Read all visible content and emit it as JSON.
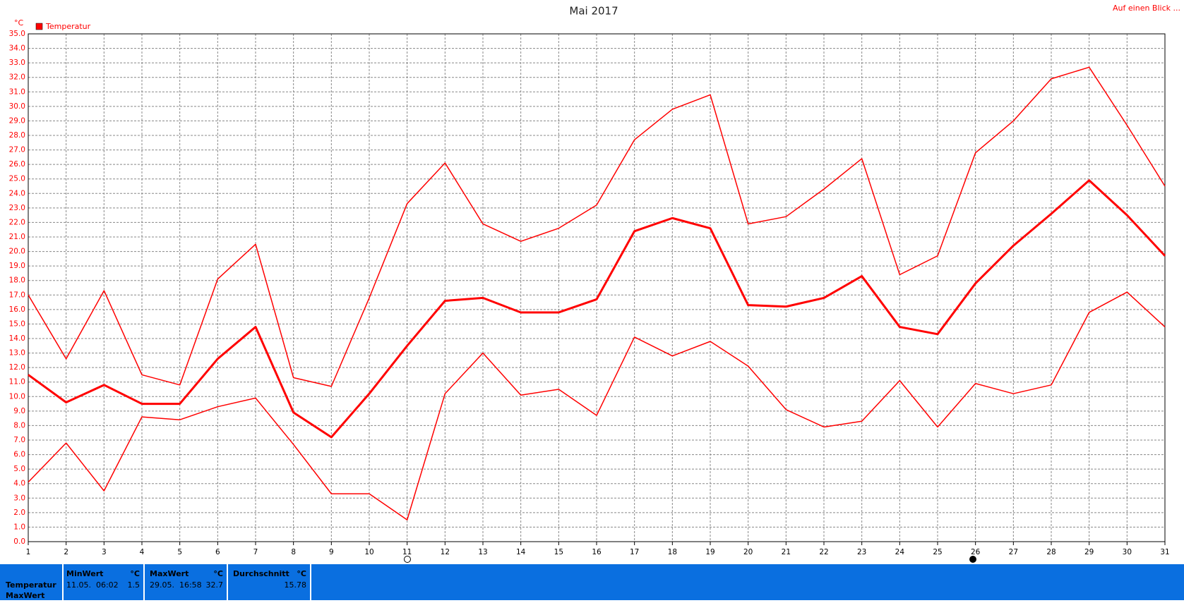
{
  "chart_data": {
    "type": "line",
    "title": "Mai 2017",
    "unit_label": "°C",
    "legend": "Temperatur",
    "legend_color": "#ff0000",
    "link": "Auf einen Blick ...",
    "x": [
      1,
      2,
      3,
      4,
      5,
      6,
      7,
      8,
      9,
      10,
      11,
      12,
      13,
      14,
      15,
      16,
      17,
      18,
      19,
      20,
      21,
      22,
      23,
      24,
      25,
      26,
      27,
      28,
      29,
      30,
      31
    ],
    "xlim": [
      1,
      31
    ],
    "xticks": [
      1,
      2,
      3,
      4,
      5,
      6,
      7,
      8,
      9,
      10,
      11,
      12,
      13,
      14,
      15,
      16,
      17,
      18,
      19,
      20,
      21,
      22,
      23,
      24,
      25,
      26,
      27,
      28,
      29,
      30,
      31
    ],
    "ylim": [
      0,
      35
    ],
    "yticks": [
      {
        "value": 0,
        "label": "0.0"
      },
      {
        "value": 1,
        "label": "1.0"
      },
      {
        "value": 2,
        "label": "2.0"
      },
      {
        "value": 3,
        "label": "3.0"
      },
      {
        "value": 4,
        "label": "4.0"
      },
      {
        "value": 5,
        "label": "5.0"
      },
      {
        "value": 6,
        "label": "6.0"
      },
      {
        "value": 7,
        "label": "7.0"
      },
      {
        "value": 8,
        "label": "8.0"
      },
      {
        "value": 9,
        "label": "9.0"
      },
      {
        "value": 10,
        "label": "10.0"
      },
      {
        "value": 11,
        "label": "11.0"
      },
      {
        "value": 12,
        "label": "12.0"
      },
      {
        "value": 13,
        "label": "13.0"
      },
      {
        "value": 14,
        "label": "14.0"
      },
      {
        "value": 15,
        "label": "15.0"
      },
      {
        "value": 16,
        "label": "16.0"
      },
      {
        "value": 17,
        "label": "17.0"
      },
      {
        "value": 18,
        "label": "18.0"
      },
      {
        "value": 19,
        "label": "19.0"
      },
      {
        "value": 20,
        "label": "20.0"
      },
      {
        "value": 21,
        "label": "21.0"
      },
      {
        "value": 22,
        "label": "22.0"
      },
      {
        "value": 23,
        "label": "23.0"
      },
      {
        "value": 24,
        "label": "24.0"
      },
      {
        "value": 25,
        "label": "25.0"
      },
      {
        "value": 26,
        "label": "26.0"
      },
      {
        "value": 27,
        "label": "27.0"
      },
      {
        "value": 28,
        "label": "28.0"
      },
      {
        "value": 29,
        "label": "29.0"
      },
      {
        "value": 30,
        "label": "30.0"
      },
      {
        "value": 31,
        "label": "31.0"
      },
      {
        "value": 32,
        "label": "32.0"
      },
      {
        "value": 33,
        "label": "33.0"
      },
      {
        "value": 34,
        "label": "34.0"
      },
      {
        "value": 35,
        "label": "35.0"
      }
    ],
    "grid": true,
    "series": [
      {
        "color": "#ff0000",
        "width": 1.5,
        "values": [
          17.0,
          12.6,
          17.3,
          11.5,
          10.8,
          18.1,
          20.5,
          11.3,
          10.7,
          16.8,
          23.3,
          26.1,
          21.9,
          20.7,
          21.6,
          23.2,
          27.7,
          29.8,
          30.8,
          21.9,
          22.4,
          24.3,
          26.4,
          18.4,
          19.7,
          26.8,
          29.0,
          31.9,
          32.7,
          28.7,
          24.5
        ]
      },
      {
        "color": "#ff0000",
        "width": 3,
        "values": [
          11.5,
          9.6,
          10.8,
          9.5,
          9.5,
          12.6,
          14.8,
          8.9,
          7.2,
          10.2,
          13.5,
          16.6,
          16.8,
          15.8,
          15.8,
          16.7,
          21.4,
          22.3,
          21.6,
          16.3,
          16.2,
          16.8,
          18.3,
          14.8,
          14.3,
          17.8,
          20.4,
          22.6,
          24.9,
          22.5,
          19.7
        ]
      },
      {
        "color": "#ff0000",
        "width": 1.5,
        "values": [
          4.1,
          6.8,
          3.5,
          8.6,
          8.4,
          9.3,
          9.9,
          6.7,
          3.3,
          3.3,
          1.5,
          10.2,
          13.0,
          10.1,
          10.5,
          8.7,
          14.1,
          12.8,
          13.8,
          12.1,
          9.1,
          7.9,
          8.3,
          11.1,
          7.9,
          10.9,
          10.2,
          10.8,
          15.8,
          17.2,
          14.8
        ]
      }
    ]
  },
  "summary": {
    "row_labels": [
      "Temperatur",
      "MaxWert"
    ],
    "columns": [
      {
        "header": "MinWert",
        "unit": "°C",
        "time": "11.05.  06:02",
        "value": "1.5"
      },
      {
        "header": "MaxWert",
        "unit": "°C",
        "time": "29.05.  16:58",
        "value": "32.7"
      },
      {
        "header": "Durchschnitt",
        "unit": "°C",
        "value": "15.78"
      }
    ]
  }
}
